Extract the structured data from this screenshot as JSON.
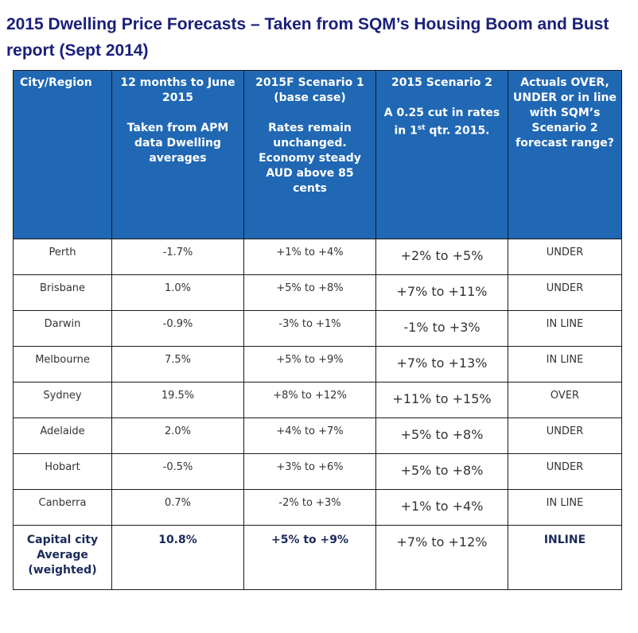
{
  "title": "2015 Dwelling Price Forecasts – Taken from SQM’s Housing Boom and Bust report (Sept 2014)",
  "headers": {
    "col1": "City/Region",
    "col2_line1": "12 months to June 2015",
    "col2_line2": "Taken from APM data Dwelling averages",
    "col3_line1": "2015F Scenario 1 (base case)",
    "col3_line2": "Rates remain unchanged. Economy steady AUD above 85 cents",
    "col4_line1": "2015 Scenario 2",
    "col4_line2a": "A 0.25 cut in rates in 1",
    "col4_sup": "st",
    "col4_line2b": " qtr. 2015.",
    "col5": "Actuals OVER, UNDER or in line with SQM’s Scenario 2 forecast range?"
  },
  "rows": [
    {
      "city": "Perth",
      "actual": "-1.7%",
      "scenario1": "+1% to +4%",
      "scenario2": "+2% to +5%",
      "result": "UNDER"
    },
    {
      "city": "Brisbane",
      "actual": "1.0%",
      "scenario1": "+5% to +8%",
      "scenario2": "+7% to +11%",
      "result": "UNDER"
    },
    {
      "city": "Darwin",
      "actual": "-0.9%",
      "scenario1": "-3% to +1%",
      "scenario2": "-1% to +3%",
      "result": "IN LINE"
    },
    {
      "city": "Melbourne",
      "actual": "7.5%",
      "scenario1": "+5% to +9%",
      "scenario2": "+7% to +13%",
      "result": "IN LINE"
    },
    {
      "city": "Sydney",
      "actual": "19.5%",
      "scenario1": "+8% to +12%",
      "scenario2": "+11% to +15%",
      "result": "OVER"
    },
    {
      "city": "Adelaide",
      "actual": "2.0%",
      "scenario1": "+4% to +7%",
      "scenario2": "+5% to +8%",
      "result": "UNDER"
    },
    {
      "city": "Hobart",
      "actual": "-0.5%",
      "scenario1": "+3% to +6%",
      "scenario2": "+5% to +8%",
      "result": "UNDER"
    },
    {
      "city": "Canberra",
      "actual": "0.7%",
      "scenario1": "-2% to +3%",
      "scenario2": "+1% to +4%",
      "result": "IN LINE"
    }
  ],
  "average": {
    "city": "Capital city Average (weighted)",
    "actual": "10.8%",
    "scenario1": "+5% to +9%",
    "scenario2": "+7% to +12%",
    "result": "INLINE"
  },
  "colors": {
    "header_bg": "#2068b4",
    "title": "#1a1f7a"
  }
}
